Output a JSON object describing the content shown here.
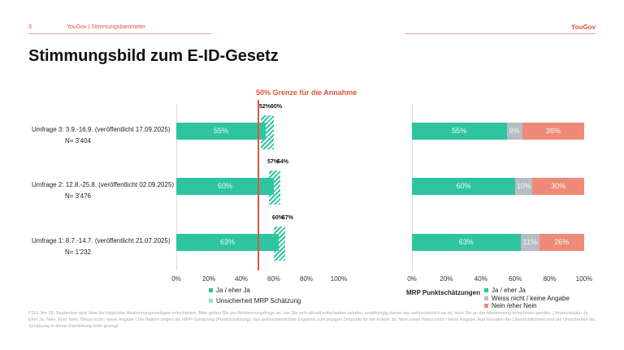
{
  "header": {
    "page": "3",
    "source": "YouGov | Stimmungsbarometer",
    "logo": "YouGov"
  },
  "title": "Stimmungsbild zum E-ID-Gesetz",
  "colors": {
    "ja": "#2ec4a0",
    "weiss": "#b8bcc4",
    "nein": "#f08a78",
    "threshold": "#e0533f"
  },
  "chart_data": [
    {
      "type": "bar",
      "orientation": "horizontal",
      "xlim": [
        0,
        100
      ],
      "ticks": [
        "0%",
        "20%",
        "40%",
        "60%",
        "80%",
        "100%"
      ],
      "threshold": {
        "value": 50,
        "label": "50% Grenze für die Annahme"
      },
      "categories": [
        {
          "label": "Umfrage 3: 3.9.-16.9. (veröffentlicht 17.09.2025)",
          "n": "N= 3'404",
          "ja": 55,
          "ja_label": "55%",
          "low": 52,
          "high": 60,
          "low_label": "52%",
          "high_label": "60%"
        },
        {
          "label": "Umfrage 2: 12.8.-25.8. (veröffentlicht 02.09.2025)",
          "n": "N= 3'476",
          "ja": 60,
          "ja_label": "60%",
          "low": 57,
          "high": 64,
          "low_label": "57%",
          "high_label": "64%"
        },
        {
          "label": "Umfrage 1: 8.7.-14.7. (veröffentlicht 21.07.2025)",
          "n": "N= 1'232",
          "ja": 63,
          "ja_label": "63%",
          "low": 60,
          "high": 67,
          "low_label": "60%",
          "high_label": "67%"
        }
      ],
      "legend": [
        "Ja / eher Ja",
        "Unsicherheit MRP Schätzung"
      ]
    },
    {
      "type": "bar",
      "stacked": true,
      "orientation": "horizontal",
      "xlim": [
        0,
        100
      ],
      "ticks": [
        "0%",
        "20%",
        "40%",
        "60%",
        "80%",
        "100%"
      ],
      "legend_title": "MRP Punktschätzungen",
      "legend": [
        "Ja / eher Ja",
        "Weiss nicht / keine Angabe",
        "Nein /eher Nein"
      ],
      "rows": [
        {
          "ja": 55,
          "weiss": 9,
          "nein": 36,
          "labels": [
            "55%",
            "9%",
            "36%"
          ]
        },
        {
          "ja": 60,
          "weiss": 10,
          "nein": 30,
          "labels": [
            "60%",
            "10%",
            "30%"
          ]
        },
        {
          "ja": 63,
          "weiss": 11,
          "nein": 26,
          "labels": [
            "63%",
            "11%",
            "26%"
          ]
        }
      ]
    }
  ],
  "footnote": "F110. Am 28. September wird über die folgenden Abstimmungsvorlagen entschieden. Bitte geben Sie pro Abstimmungsfrage an, wie Sie sich aktuell entscheiden würden, unabhängig davon wie wahrscheinlich es ist, dass Sie an der Abstimmung teilnehmen werden. | Antwortskala: Ja, Eher Ja, Nein, Eher Nein, Weiss nicht / keine Angabe | Die Balken zeigen die MRP-Schätzung (Punktschätzung): das wahrscheinlichste Ergebnis zum jetzigen Zeitpunkt für die Anteile Ja, Nein sowie Weiss nicht / keine Angabe. Aus Gründen der Übersichtlichkeit wird die Unsicherheit der Schätzung in dieser Darstellung nicht gezeigt"
}
